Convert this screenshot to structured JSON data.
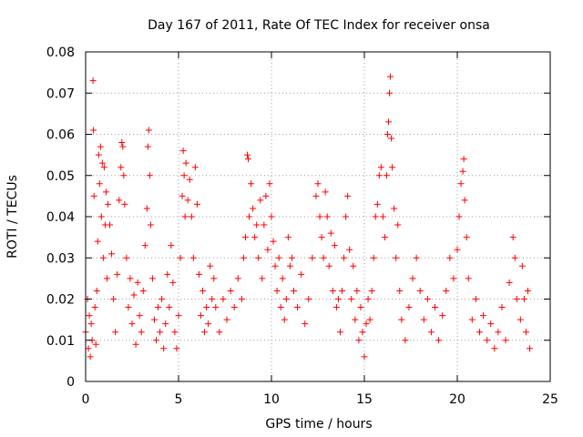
{
  "chart_data": {
    "type": "scatter",
    "title": "Day 167 of 2011, Rate Of TEC Index for receiver onsa",
    "xlabel": "GPS time / hours",
    "ylabel": "ROTI / TECUs",
    "xlim": [
      0,
      25
    ],
    "ylim": [
      0,
      0.08
    ],
    "xticks": [
      0,
      5,
      10,
      15,
      20,
      25
    ],
    "yticks": [
      0,
      0.01,
      0.02,
      0.03,
      0.04,
      0.05,
      0.06,
      0.07,
      0.08
    ],
    "xtick_labels": [
      "0",
      "5",
      "10",
      "15",
      "20",
      "25"
    ],
    "ytick_labels": [
      "0",
      "0.01",
      "0.02",
      "0.03",
      "0.04",
      "0.05",
      "0.06",
      "0.07",
      "0.08"
    ],
    "grid": true,
    "marker": "plus",
    "color": "#ff0000",
    "series": [
      {
        "name": "",
        "points": [
          [
            0.0,
            0.012
          ],
          [
            0.1,
            0.02
          ],
          [
            0.15,
            0.008
          ],
          [
            0.2,
            0.016
          ],
          [
            0.25,
            0.006
          ],
          [
            0.3,
            0.014
          ],
          [
            0.35,
            0.01
          ],
          [
            0.4,
            0.073
          ],
          [
            0.42,
            0.061
          ],
          [
            0.45,
            0.045
          ],
          [
            0.5,
            0.018
          ],
          [
            0.55,
            0.009
          ],
          [
            0.6,
            0.022
          ],
          [
            0.65,
            0.034
          ],
          [
            0.7,
            0.055
          ],
          [
            0.75,
            0.048
          ],
          [
            0.8,
            0.057
          ],
          [
            0.85,
            0.04
          ],
          [
            0.9,
            0.053
          ],
          [
            0.95,
            0.03
          ],
          [
            1.0,
            0.052
          ],
          [
            1.05,
            0.038
          ],
          [
            1.1,
            0.046
          ],
          [
            1.15,
            0.025
          ],
          [
            1.2,
            0.043
          ],
          [
            1.3,
            0.038
          ],
          [
            1.4,
            0.031
          ],
          [
            1.5,
            0.02
          ],
          [
            1.6,
            0.012
          ],
          [
            1.7,
            0.026
          ],
          [
            1.8,
            0.044
          ],
          [
            1.9,
            0.052
          ],
          [
            1.95,
            0.058
          ],
          [
            2.0,
            0.057
          ],
          [
            2.05,
            0.05
          ],
          [
            2.1,
            0.043
          ],
          [
            2.2,
            0.03
          ],
          [
            2.3,
            0.018
          ],
          [
            2.4,
            0.025
          ],
          [
            2.5,
            0.014
          ],
          [
            2.6,
            0.021
          ],
          [
            2.7,
            0.009
          ],
          [
            2.8,
            0.024
          ],
          [
            2.9,
            0.016
          ],
          [
            3.0,
            0.012
          ],
          [
            3.1,
            0.022
          ],
          [
            3.2,
            0.033
          ],
          [
            3.3,
            0.042
          ],
          [
            3.35,
            0.057
          ],
          [
            3.4,
            0.061
          ],
          [
            3.45,
            0.05
          ],
          [
            3.5,
            0.038
          ],
          [
            3.6,
            0.025
          ],
          [
            3.7,
            0.015
          ],
          [
            3.8,
            0.01
          ],
          [
            3.9,
            0.018
          ],
          [
            4.0,
            0.012
          ],
          [
            4.1,
            0.02
          ],
          [
            4.2,
            0.008
          ],
          [
            4.3,
            0.014
          ],
          [
            4.4,
            0.026
          ],
          [
            4.5,
            0.018
          ],
          [
            4.6,
            0.033
          ],
          [
            4.7,
            0.024
          ],
          [
            4.8,
            0.012
          ],
          [
            4.9,
            0.008
          ],
          [
            5.0,
            0.016
          ],
          [
            5.1,
            0.03
          ],
          [
            5.2,
            0.045
          ],
          [
            5.25,
            0.056
          ],
          [
            5.3,
            0.05
          ],
          [
            5.35,
            0.04
          ],
          [
            5.4,
            0.053
          ],
          [
            5.5,
            0.044
          ],
          [
            5.6,
            0.049
          ],
          [
            5.7,
            0.04
          ],
          [
            5.8,
            0.03
          ],
          [
            5.9,
            0.052
          ],
          [
            6.0,
            0.043
          ],
          [
            6.1,
            0.026
          ],
          [
            6.2,
            0.016
          ],
          [
            6.3,
            0.022
          ],
          [
            6.4,
            0.012
          ],
          [
            6.5,
            0.018
          ],
          [
            6.6,
            0.014
          ],
          [
            6.7,
            0.028
          ],
          [
            6.8,
            0.02
          ],
          [
            6.9,
            0.025
          ],
          [
            7.0,
            0.018
          ],
          [
            7.2,
            0.012
          ],
          [
            7.4,
            0.02
          ],
          [
            7.6,
            0.015
          ],
          [
            7.8,
            0.022
          ],
          [
            8.0,
            0.018
          ],
          [
            8.2,
            0.025
          ],
          [
            8.4,
            0.02
          ],
          [
            8.5,
            0.03
          ],
          [
            8.6,
            0.035
          ],
          [
            8.7,
            0.055
          ],
          [
            8.75,
            0.054
          ],
          [
            8.8,
            0.04
          ],
          [
            8.9,
            0.048
          ],
          [
            9.0,
            0.042
          ],
          [
            9.1,
            0.035
          ],
          [
            9.2,
            0.038
          ],
          [
            9.3,
            0.03
          ],
          [
            9.4,
            0.044
          ],
          [
            9.5,
            0.025
          ],
          [
            9.6,
            0.038
          ],
          [
            9.7,
            0.045
          ],
          [
            9.8,
            0.032
          ],
          [
            9.9,
            0.048
          ],
          [
            10.0,
            0.04
          ],
          [
            10.1,
            0.034
          ],
          [
            10.2,
            0.028
          ],
          [
            10.3,
            0.022
          ],
          [
            10.4,
            0.03
          ],
          [
            10.5,
            0.018
          ],
          [
            10.6,
            0.025
          ],
          [
            10.7,
            0.015
          ],
          [
            10.8,
            0.02
          ],
          [
            10.9,
            0.035
          ],
          [
            11.0,
            0.028
          ],
          [
            11.1,
            0.03
          ],
          [
            11.2,
            0.022
          ],
          [
            11.4,
            0.018
          ],
          [
            11.6,
            0.026
          ],
          [
            11.8,
            0.014
          ],
          [
            12.0,
            0.02
          ],
          [
            12.2,
            0.03
          ],
          [
            12.4,
            0.045
          ],
          [
            12.5,
            0.048
          ],
          [
            12.6,
            0.04
          ],
          [
            12.7,
            0.035
          ],
          [
            12.8,
            0.03
          ],
          [
            12.9,
            0.046
          ],
          [
            13.0,
            0.04
          ],
          [
            13.1,
            0.028
          ],
          [
            13.2,
            0.036
          ],
          [
            13.3,
            0.022
          ],
          [
            13.4,
            0.033
          ],
          [
            13.5,
            0.018
          ],
          [
            13.6,
            0.02
          ],
          [
            13.7,
            0.012
          ],
          [
            13.8,
            0.022
          ],
          [
            13.9,
            0.03
          ],
          [
            14.0,
            0.04
          ],
          [
            14.1,
            0.045
          ],
          [
            14.2,
            0.032
          ],
          [
            14.3,
            0.02
          ],
          [
            14.4,
            0.028
          ],
          [
            14.5,
            0.015
          ],
          [
            14.6,
            0.022
          ],
          [
            14.7,
            0.01
          ],
          [
            14.8,
            0.018
          ],
          [
            14.9,
            0.012
          ],
          [
            15.0,
            0.006
          ],
          [
            15.1,
            0.014
          ],
          [
            15.2,
            0.02
          ],
          [
            15.3,
            0.015
          ],
          [
            15.4,
            0.022
          ],
          [
            15.5,
            0.03
          ],
          [
            15.6,
            0.04
          ],
          [
            15.7,
            0.043
          ],
          [
            15.8,
            0.05
          ],
          [
            15.9,
            0.052
          ],
          [
            16.0,
            0.04
          ],
          [
            16.1,
            0.035
          ],
          [
            16.2,
            0.05
          ],
          [
            16.25,
            0.06
          ],
          [
            16.3,
            0.063
          ],
          [
            16.35,
            0.07
          ],
          [
            16.4,
            0.074
          ],
          [
            16.45,
            0.059
          ],
          [
            16.5,
            0.052
          ],
          [
            16.6,
            0.042
          ],
          [
            16.7,
            0.03
          ],
          [
            16.8,
            0.038
          ],
          [
            16.9,
            0.022
          ],
          [
            17.0,
            0.015
          ],
          [
            17.2,
            0.01
          ],
          [
            17.4,
            0.018
          ],
          [
            17.6,
            0.025
          ],
          [
            17.8,
            0.03
          ],
          [
            18.0,
            0.022
          ],
          [
            18.2,
            0.015
          ],
          [
            18.4,
            0.02
          ],
          [
            18.6,
            0.012
          ],
          [
            18.8,
            0.018
          ],
          [
            19.0,
            0.01
          ],
          [
            19.2,
            0.016
          ],
          [
            19.4,
            0.022
          ],
          [
            19.6,
            0.03
          ],
          [
            19.8,
            0.025
          ],
          [
            20.0,
            0.032
          ],
          [
            20.1,
            0.04
          ],
          [
            20.2,
            0.048
          ],
          [
            20.3,
            0.051
          ],
          [
            20.35,
            0.054
          ],
          [
            20.4,
            0.044
          ],
          [
            20.5,
            0.035
          ],
          [
            20.6,
            0.025
          ],
          [
            20.8,
            0.015
          ],
          [
            21.0,
            0.02
          ],
          [
            21.2,
            0.012
          ],
          [
            21.4,
            0.016
          ],
          [
            21.6,
            0.01
          ],
          [
            21.8,
            0.014
          ],
          [
            22.0,
            0.008
          ],
          [
            22.2,
            0.012
          ],
          [
            22.4,
            0.018
          ],
          [
            22.6,
            0.01
          ],
          [
            22.8,
            0.024
          ],
          [
            23.0,
            0.035
          ],
          [
            23.1,
            0.03
          ],
          [
            23.2,
            0.02
          ],
          [
            23.4,
            0.015
          ],
          [
            23.5,
            0.028
          ],
          [
            23.6,
            0.02
          ],
          [
            23.7,
            0.012
          ],
          [
            23.8,
            0.022
          ],
          [
            23.9,
            0.008
          ]
        ]
      }
    ]
  }
}
